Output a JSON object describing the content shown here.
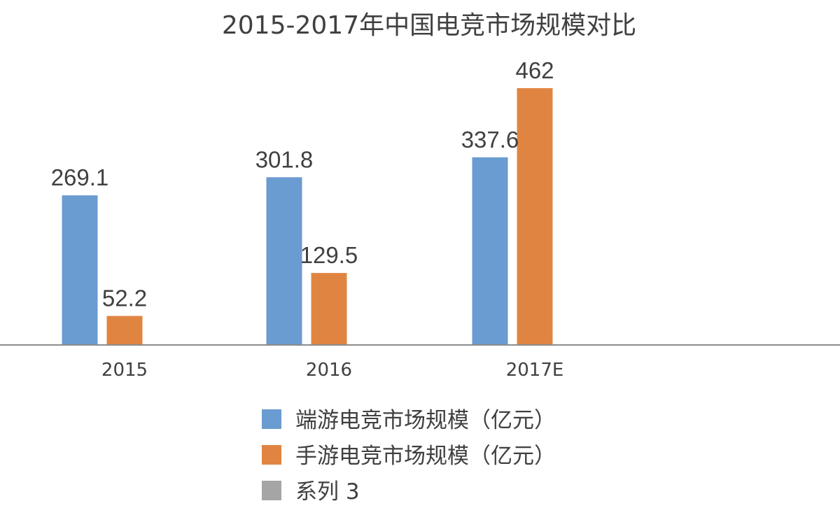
{
  "chart_data": {
    "type": "bar",
    "title": "2015-2017年中国电竞市场规模对比",
    "categories": [
      "2015",
      "2016",
      "2017E"
    ],
    "series": [
      {
        "name": "端游电竞市场规模（亿元）",
        "values": [
          269.1,
          301.8,
          337.6
        ],
        "color": "#6a9bd1"
      },
      {
        "name": "手游电竞市场规模（亿元）",
        "values": [
          52.2,
          129.5,
          462
        ],
        "color": "#e08541"
      },
      {
        "name": "系列 3",
        "values": [
          null,
          null,
          null
        ],
        "color": "#a5a5a5"
      }
    ],
    "ylim": [
      0,
      500
    ],
    "grid": false,
    "legend_position": "bottom",
    "axis_color": "#8c8c8c"
  }
}
